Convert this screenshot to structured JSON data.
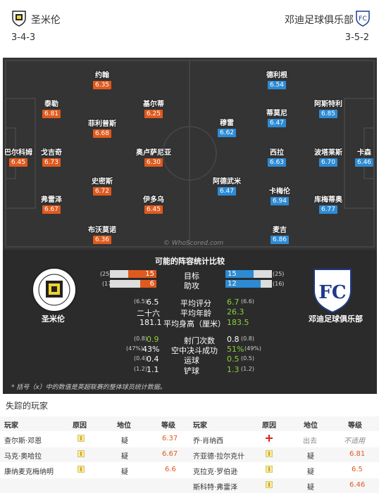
{
  "home": {
    "name": "圣米伦",
    "formation": "3-4-3",
    "players": [
      {
        "name": "约翰",
        "rating": "6.35"
      },
      {
        "name": "泰勒",
        "rating": "6.81"
      },
      {
        "name": "基尔蒂",
        "rating": "6.25"
      },
      {
        "name": "菲利普斯",
        "rating": "6.68"
      },
      {
        "name": "巴尔科姆",
        "rating": "6.45"
      },
      {
        "name": "戈吉奇",
        "rating": "6.73"
      },
      {
        "name": "奥卢萨尼亚",
        "rating": "6.30"
      },
      {
        "name": "史密斯",
        "rating": "6.72"
      },
      {
        "name": "弗雷泽",
        "rating": "6.67"
      },
      {
        "name": "伊多乌",
        "rating": "6.45"
      },
      {
        "name": "布沃莫诺",
        "rating": "6.36"
      }
    ]
  },
  "away": {
    "name": "邓迪足球俱乐部",
    "formation": "3-5-2",
    "players": [
      {
        "name": "德利根",
        "rating": "6.54"
      },
      {
        "name": "阿斯特利",
        "rating": "6.85"
      },
      {
        "name": "蒂莫尼",
        "rating": "6.47"
      },
      {
        "name": "穆雷",
        "rating": "6.62"
      },
      {
        "name": "西拉",
        "rating": "6.63"
      },
      {
        "name": "波塔莱斯",
        "rating": "6.70"
      },
      {
        "name": "卡森",
        "rating": "6.46"
      },
      {
        "name": "阿德武米",
        "rating": "6.47"
      },
      {
        "name": "卡梅伦",
        "rating": "6.94"
      },
      {
        "name": "库梅蒂奥",
        "rating": "6.77"
      },
      {
        "name": "麦吉",
        "rating": "6.86"
      }
    ]
  },
  "watermark": "© WhoScored.com",
  "stats": {
    "title": "可能的阵容统计比较",
    "goals": {
      "label": "目标",
      "home": "15",
      "home_season": "(25)",
      "away": "15",
      "away_season": "(25)",
      "home_fill": 0.6,
      "away_fill": 0.6
    },
    "assists": {
      "label": "助攻",
      "home": "6",
      "home_season": "(17)",
      "away": "12",
      "away_season": "(16)",
      "home_fill": 0.35,
      "away_fill": 0.75
    },
    "rows1": [
      {
        "label": "平均评分",
        "home": "6.5",
        "home_season": "(6.5)",
        "away": "6.7",
        "away_season": "(6.6)"
      },
      {
        "label": "平均年龄",
        "home": "二十六",
        "home_season": "",
        "away": "26.3",
        "away_season": ""
      },
      {
        "label": "平均身高（厘米）",
        "home": "181.1",
        "home_season": "",
        "away": "183.5",
        "away_season": ""
      }
    ],
    "rows2": [
      {
        "label": "射门次数",
        "home": "0.9",
        "home_season": "(0.8)",
        "away": "0.8",
        "away_season": "(0.8)"
      },
      {
        "label": "空中决斗成功",
        "home": "43%",
        "home_season": "(47%)",
        "away": "51%",
        "away_season": "(49%)"
      },
      {
        "label": "运球",
        "home": "0.4",
        "home_season": "(0.4)",
        "away": "0.5",
        "away_season": "(0.5)"
      },
      {
        "label": "铲球",
        "home": "1.1",
        "home_season": "(1.2)",
        "away": "1.3",
        "away_season": "(1.2)"
      }
    ],
    "note": "* 括号（x）中的数值是英超联赛的整体球员统计数据。"
  },
  "missing": {
    "title": "失踪的玩家",
    "headers": {
      "player": "玩家",
      "reason": "原因",
      "status": "地位",
      "rating": "等级"
    },
    "home_rows": [
      {
        "player": "查尔斯·邓恩",
        "icon": "injury-icon",
        "status": "疑",
        "rating": "6.37"
      },
      {
        "player": "马克·奥哈拉",
        "icon": "injury-icon",
        "status": "疑",
        "rating": "6.67"
      },
      {
        "player": "康纳麦克梅纳明",
        "icon": "injury-icon",
        "status": "疑",
        "rating": "6.6"
      }
    ],
    "away_rows": [
      {
        "player": "乔·肖纳西",
        "icon": "red-cross-icon",
        "status": "出去",
        "rating": "不适用"
      },
      {
        "player": "齐亚德·拉尔克什",
        "icon": "injury-icon",
        "status": "疑",
        "rating": "6.81"
      },
      {
        "player": "克拉克·罗伯逊",
        "icon": "injury-icon",
        "status": "疑",
        "rating": "6.5"
      },
      {
        "player": "斯科特·弗雷泽",
        "icon": "injury-icon",
        "status": "疑",
        "rating": "6.46"
      }
    ]
  },
  "colors": {
    "home": "#e05a1e",
    "away": "#2d8bd4",
    "positive": "#8bd23a"
  }
}
